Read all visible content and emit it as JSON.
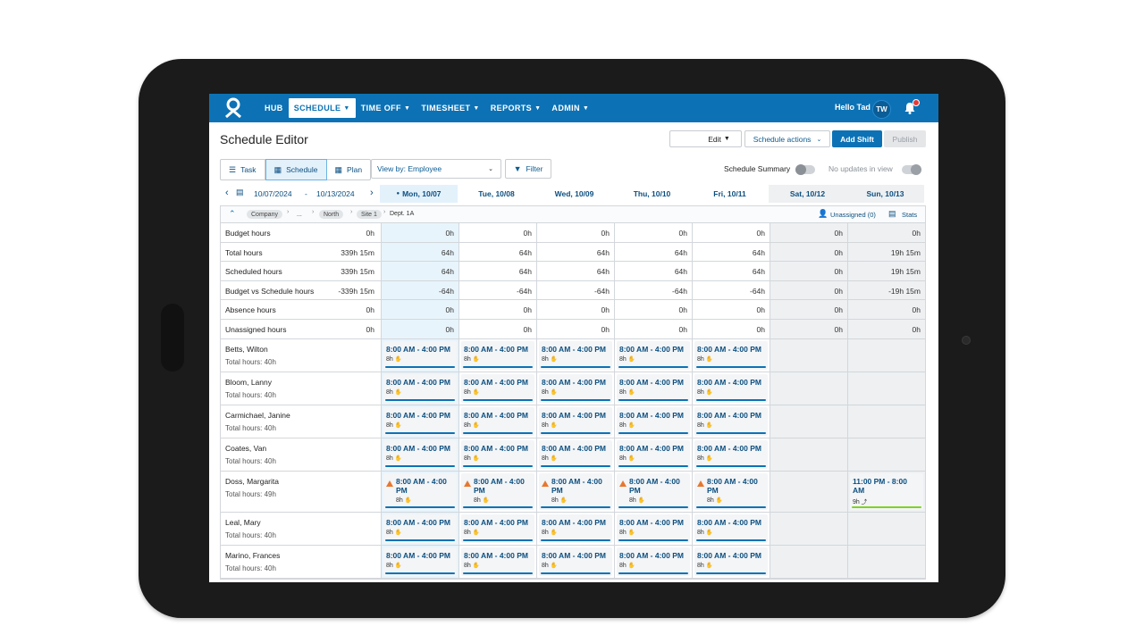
{
  "nav": {
    "items": [
      {
        "label": "HUB",
        "chevron": false,
        "active": false
      },
      {
        "label": "SCHEDULE",
        "chevron": true,
        "active": true
      },
      {
        "label": "TIME OFF",
        "chevron": true,
        "active": false
      },
      {
        "label": "TIMESHEET",
        "chevron": true,
        "active": false
      },
      {
        "label": "REPORTS",
        "chevron": true,
        "active": false
      },
      {
        "label": "ADMIN",
        "chevron": true,
        "active": false
      }
    ],
    "greeting": "Hello Tad",
    "avatar_initials": "TW"
  },
  "page": {
    "title": "Schedule Editor",
    "edit_label": "Edit",
    "schedule_actions_label": "Schedule actions",
    "add_shift_label": "Add Shift",
    "publish_label": "Publish"
  },
  "toolbar": {
    "views": [
      {
        "label": "Task",
        "active": false
      },
      {
        "label": "Schedule",
        "active": true
      },
      {
        "label": "Plan",
        "active": false
      }
    ],
    "view_by_label": "View by: Employee",
    "filter_label": "Filter",
    "schedule_summary_label": "Schedule Summary",
    "no_updates_label": "No updates in view"
  },
  "dates": {
    "start": "10/07/2024",
    "separator": "-",
    "end": "10/13/2024",
    "days": [
      {
        "label": "Mon, 10/07",
        "today": true,
        "weekend": false
      },
      {
        "label": "Tue, 10/08",
        "today": false,
        "weekend": false
      },
      {
        "label": "Wed, 10/09",
        "today": false,
        "weekend": false
      },
      {
        "label": "Thu, 10/10",
        "today": false,
        "weekend": false
      },
      {
        "label": "Fri, 10/11",
        "today": false,
        "weekend": false
      },
      {
        "label": "Sat, 10/12",
        "today": false,
        "weekend": true
      },
      {
        "label": "Sun, 10/13",
        "today": false,
        "weekend": true
      }
    ]
  },
  "breadcrumb": {
    "items": [
      "Company",
      "...",
      "North",
      "Site 1"
    ],
    "current": "Dept. 1A",
    "unassigned_label": "Unassigned (0)",
    "stats_label": "Stats"
  },
  "summary_rows": [
    {
      "label": "Budget hours",
      "total": "0h",
      "values": [
        "0h",
        "0h",
        "0h",
        "0h",
        "0h",
        "0h",
        "0h"
      ]
    },
    {
      "label": "Total hours",
      "total": "339h 15m",
      "values": [
        "64h",
        "64h",
        "64h",
        "64h",
        "64h",
        "0h",
        "19h 15m"
      ]
    },
    {
      "label": "Scheduled hours",
      "total": "339h 15m",
      "values": [
        "64h",
        "64h",
        "64h",
        "64h",
        "64h",
        "0h",
        "19h 15m"
      ]
    },
    {
      "label": "Budget vs Schedule hours",
      "total": "-339h 15m",
      "values": [
        "-64h",
        "-64h",
        "-64h",
        "-64h",
        "-64h",
        "0h",
        "-19h 15m"
      ]
    },
    {
      "label": "Absence hours",
      "total": "0h",
      "values": [
        "0h",
        "0h",
        "0h",
        "0h",
        "0h",
        "0h",
        "0h"
      ]
    },
    {
      "label": "Unassigned hours",
      "total": "0h",
      "values": [
        "0h",
        "0h",
        "0h",
        "0h",
        "0h",
        "0h",
        "0h"
      ]
    }
  ],
  "employees": [
    {
      "name": "Betts, Wilton",
      "total": "Total hours: 40h",
      "shifts": [
        {
          "time": "8:00 AM - 4:00 PM",
          "hours": "8h"
        },
        {
          "time": "8:00 AM - 4:00 PM",
          "hours": "8h"
        },
        {
          "time": "8:00 AM - 4:00 PM",
          "hours": "8h"
        },
        {
          "time": "8:00 AM - 4:00 PM",
          "hours": "8h"
        },
        {
          "time": "8:00 AM - 4:00 PM",
          "hours": "8h"
        },
        null,
        null
      ]
    },
    {
      "name": "Bloom, Lanny",
      "total": "Total hours: 40h",
      "shifts": [
        {
          "time": "8:00 AM - 4:00 PM",
          "hours": "8h"
        },
        {
          "time": "8:00 AM - 4:00 PM",
          "hours": "8h"
        },
        {
          "time": "8:00 AM - 4:00 PM",
          "hours": "8h"
        },
        {
          "time": "8:00 AM - 4:00 PM",
          "hours": "8h"
        },
        {
          "time": "8:00 AM - 4:00 PM",
          "hours": "8h"
        },
        null,
        null
      ]
    },
    {
      "name": "Carmichael, Janine",
      "total": "Total hours: 40h",
      "shifts": [
        {
          "time": "8:00 AM - 4:00 PM",
          "hours": "8h"
        },
        {
          "time": "8:00 AM - 4:00 PM",
          "hours": "8h"
        },
        {
          "time": "8:00 AM - 4:00 PM",
          "hours": "8h"
        },
        {
          "time": "8:00 AM - 4:00 PM",
          "hours": "8h"
        },
        {
          "time": "8:00 AM - 4:00 PM",
          "hours": "8h"
        },
        null,
        null
      ]
    },
    {
      "name": "Coates, Van",
      "total": "Total hours: 40h",
      "shifts": [
        {
          "time": "8:00 AM - 4:00 PM",
          "hours": "8h"
        },
        {
          "time": "8:00 AM - 4:00 PM",
          "hours": "8h"
        },
        {
          "time": "8:00 AM - 4:00 PM",
          "hours": "8h"
        },
        {
          "time": "8:00 AM - 4:00 PM",
          "hours": "8h"
        },
        {
          "time": "8:00 AM - 4:00 PM",
          "hours": "8h"
        },
        null,
        null
      ]
    },
    {
      "name": "Doss, Margarita",
      "total": "Total hours: 49h",
      "tall": true,
      "shifts": [
        {
          "time": "8:00 AM - 4:00 PM",
          "hours": "8h",
          "warn": true
        },
        {
          "time": "8:00 AM - 4:00 PM",
          "hours": "8h",
          "warn": true
        },
        {
          "time": "8:00 AM - 4:00 PM",
          "hours": "8h",
          "warn": true
        },
        {
          "time": "8:00 AM - 4:00 PM",
          "hours": "8h",
          "warn": true
        },
        {
          "time": "8:00 AM - 4:00 PM",
          "hours": "8h",
          "warn": true
        },
        null,
        {
          "time": "11:00 PM - 8:00 AM",
          "hours": "9h",
          "green": true
        }
      ]
    },
    {
      "name": "Leal, Mary",
      "total": "Total hours: 40h",
      "shifts": [
        {
          "time": "8:00 AM - 4:00 PM",
          "hours": "8h"
        },
        {
          "time": "8:00 AM - 4:00 PM",
          "hours": "8h"
        },
        {
          "time": "8:00 AM - 4:00 PM",
          "hours": "8h"
        },
        {
          "time": "8:00 AM - 4:00 PM",
          "hours": "8h"
        },
        {
          "time": "8:00 AM - 4:00 PM",
          "hours": "8h"
        },
        null,
        null
      ]
    },
    {
      "name": "Marino, Frances",
      "total": "Total hours: 40h",
      "shifts": [
        {
          "time": "8:00 AM - 4:00 PM",
          "hours": "8h"
        },
        {
          "time": "8:00 AM - 4:00 PM",
          "hours": "8h"
        },
        {
          "time": "8:00 AM - 4:00 PM",
          "hours": "8h"
        },
        {
          "time": "8:00 AM - 4:00 PM",
          "hours": "8h"
        },
        {
          "time": "8:00 AM - 4:00 PM",
          "hours": "8h"
        },
        null,
        null
      ]
    }
  ],
  "colors": {
    "brand": "#0c72b5",
    "warning": "#e8772e",
    "overnight": "#7ed321"
  }
}
